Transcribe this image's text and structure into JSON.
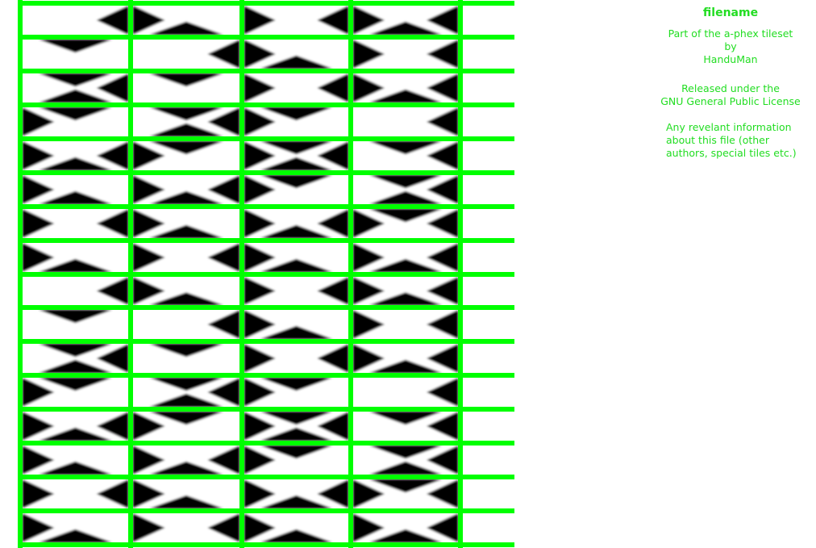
{
  "title": "filename",
  "credit": {
    "line1": "Part of the a-phex tileset",
    "line2": "by",
    "line3": "HanduMan"
  },
  "license": {
    "line1": "Released under the",
    "line2": "GNU General Public License"
  },
  "notes": {
    "line1": "Any revelant information",
    "line2": "about this file (other",
    "line3": "authors, special tiles etc.)"
  },
  "grid": {
    "rows": 16,
    "columns": 5,
    "line_color": "#00ff00",
    "tile_background": "#ffffff",
    "shape_color": "#000000"
  }
}
